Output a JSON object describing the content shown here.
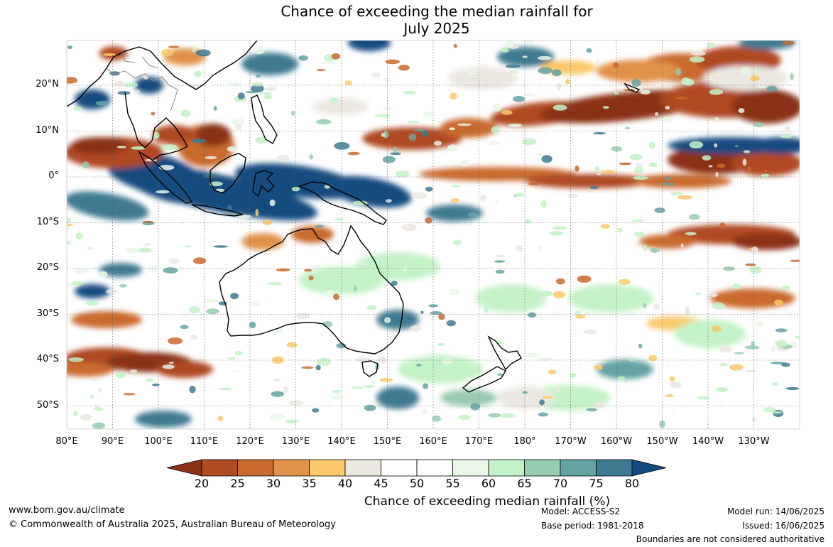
{
  "title": {
    "line1": "Chance of exceeding the median rainfall for",
    "line2": "July 2025"
  },
  "lat_labels": [
    "20°N",
    "10°N",
    "0°",
    "10°S",
    "20°S",
    "30°S",
    "40°S",
    "50°S"
  ],
  "lon_labels": [
    "80°E",
    "90°E",
    "100°E",
    "110°E",
    "120°E",
    "130°E",
    "140°E",
    "150°E",
    "160°E",
    "170°E",
    "180°",
    "170°W",
    "160°W",
    "150°W",
    "140°W",
    "130°W"
  ],
  "colorbar": {
    "ticks": [
      "20",
      "25",
      "30",
      "35",
      "40",
      "45",
      "50",
      "55",
      "60",
      "65",
      "70",
      "75",
      "80"
    ],
    "colors": [
      "#8b3318",
      "#b04a22",
      "#c96a2e",
      "#e0924a",
      "#fbc86a",
      "#ebe8e2",
      "#ffffff",
      "#ffffff",
      "#e8f7e8",
      "#c4f2c8",
      "#98cbb0",
      "#65a2a2",
      "#3f7a92",
      "#134b80"
    ],
    "label": "Chance of exceeding median rainfall (%)"
  },
  "footer": {
    "url": "www.bom.gov.au/climate",
    "copyright": "© Commonwealth of Australia 2025, Australian Bureau of Meteorology",
    "model": "Model: ACCESS-S2",
    "base_period": "Base period: 1981-2018",
    "model_run": "Model run: 14/06/2025",
    "issued": "Issued: 16/06/2025",
    "disclaimer": "Boundaries are not considered authoritative"
  }
}
